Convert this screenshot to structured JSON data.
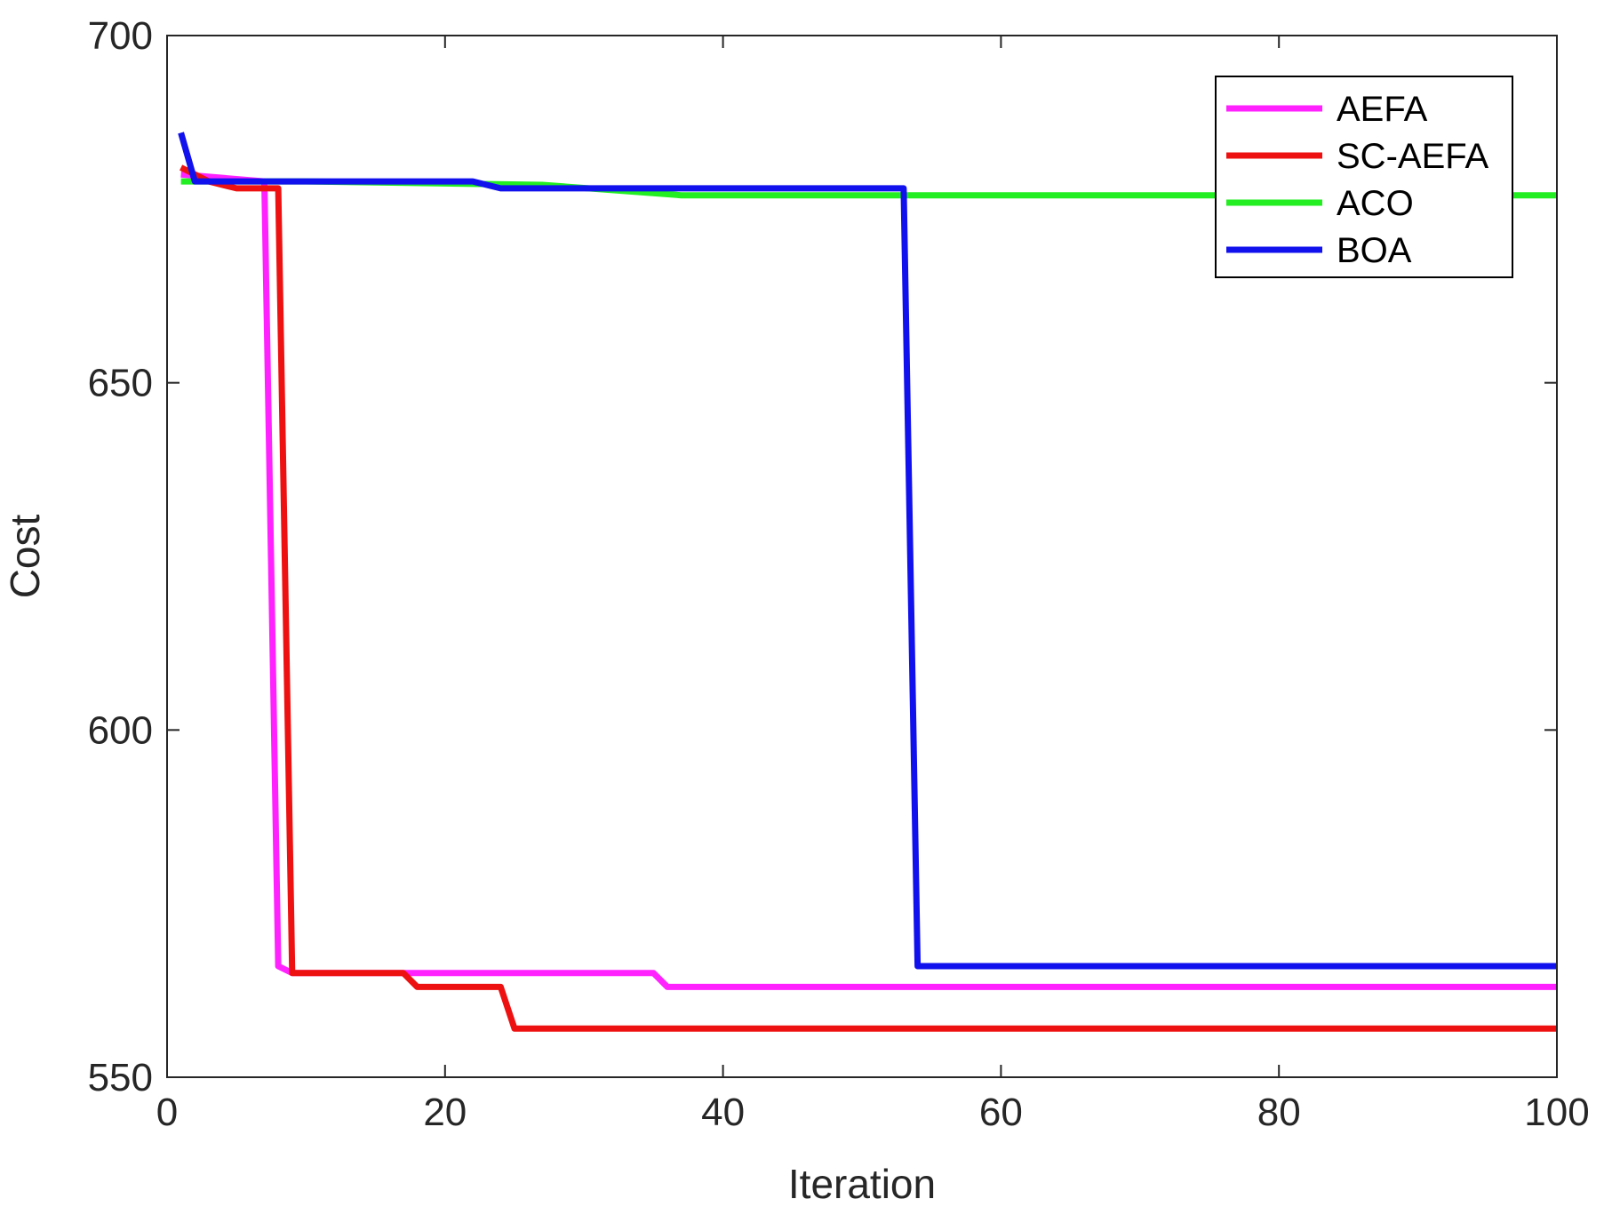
{
  "chart_data": {
    "type": "line",
    "title": "",
    "xlabel": "Iteration",
    "ylabel": "Cost",
    "xlim": [
      0,
      100
    ],
    "ylim": [
      550,
      700
    ],
    "xticks": [
      0,
      20,
      40,
      60,
      80,
      100
    ],
    "yticks": [
      550,
      600,
      650,
      700
    ],
    "grid": false,
    "legend_position": "top-right",
    "series": [
      {
        "name": "ACO",
        "color": "#22ee22",
        "points": [
          [
            1,
            679
          ],
          [
            10,
            679
          ],
          [
            27,
            678.5
          ],
          [
            37,
            677
          ],
          [
            100,
            677
          ]
        ]
      },
      {
        "name": "AEFA",
        "color": "#ff22ff",
        "points": [
          [
            1,
            680
          ],
          [
            7,
            679
          ],
          [
            8,
            566
          ],
          [
            9,
            565
          ],
          [
            35,
            565
          ],
          [
            36,
            563
          ],
          [
            100,
            563
          ]
        ]
      },
      {
        "name": "SC-AEFA",
        "color": "#ee1111",
        "points": [
          [
            1,
            681
          ],
          [
            2,
            680
          ],
          [
            3,
            679
          ],
          [
            5,
            678
          ],
          [
            8,
            678
          ],
          [
            9,
            565
          ],
          [
            17,
            565
          ],
          [
            18,
            563
          ],
          [
            24,
            563
          ],
          [
            25,
            557
          ],
          [
            100,
            557
          ]
        ]
      },
      {
        "name": "BOA",
        "color": "#1111ee",
        "points": [
          [
            1,
            686
          ],
          [
            2,
            679
          ],
          [
            22,
            679
          ],
          [
            24,
            678
          ],
          [
            53,
            678
          ],
          [
            54,
            566
          ],
          [
            100,
            566
          ]
        ]
      }
    ],
    "legend_order": [
      "AEFA",
      "SC-AEFA",
      "ACO",
      "BOA"
    ]
  }
}
